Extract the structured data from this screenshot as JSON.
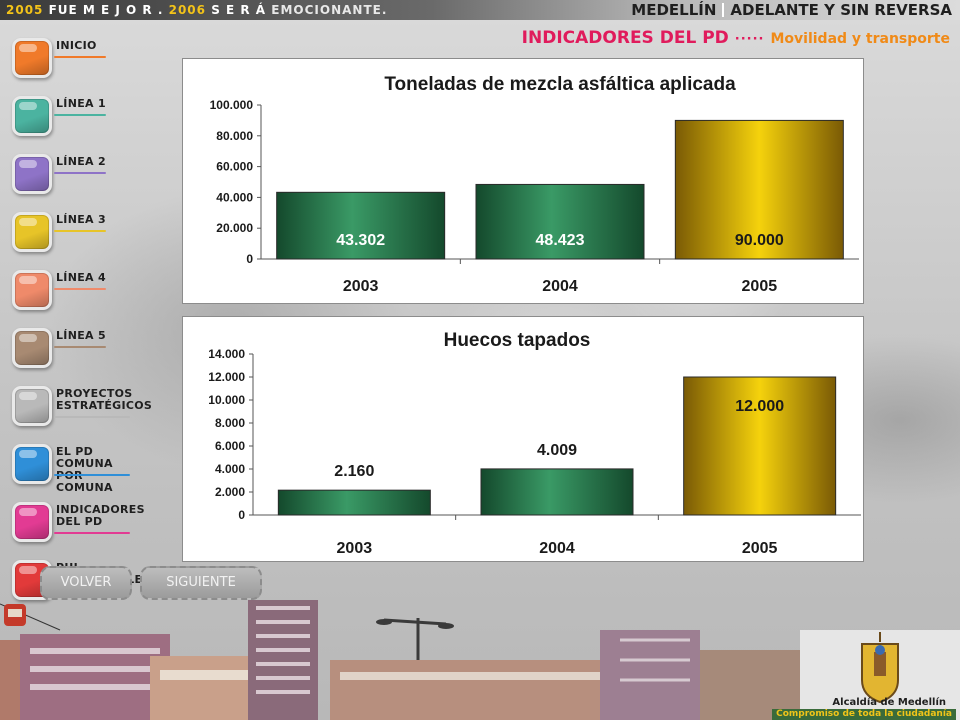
{
  "banner": {
    "slogan": {
      "year1": "2005",
      "w1": "FUE M E J O R .",
      "year2": "2006",
      "w2": "S E R Á",
      "w3": "EMOCIONANTE."
    },
    "brand_city": "MEDELLÍN",
    "brand_tagline": "ADELANTE Y SIN REVERSA"
  },
  "header": {
    "title": "INDICADORES DEL PD",
    "dots": "·····",
    "subtitle": "Movilidad y transporte"
  },
  "sidebar": {
    "items": [
      {
        "label": "INICIO",
        "color": "#f07a2a"
      },
      {
        "label": "LÍNEA 1",
        "color": "#4bb3a0"
      },
      {
        "label": "LÍNEA 2",
        "color": "#8e73c7"
      },
      {
        "label": "LÍNEA 3",
        "color": "#e7c428"
      },
      {
        "label": "LÍNEA 4",
        "color": "#ef8a6a"
      },
      {
        "label": "LÍNEA 5",
        "color": "#a88a72"
      },
      {
        "label": "PROYECTOS ESTRATÉGICOS",
        "color": "#b9b9b9"
      },
      {
        "label": "EL PD COMUNA POR COMUNA",
        "color": "#2f8fd8"
      },
      {
        "label": "INDICADORES DEL PD",
        "color": "#e23b93"
      },
      {
        "label": "PUI METROCABLE",
        "color": "#e23a3a"
      }
    ],
    "back_label": "VOLVER",
    "next_label": "SIGUIENTE"
  },
  "footer": {
    "logo_name": "Alcaldía de Medellín",
    "logo_tagline": "Compromiso de toda la ciudadanía"
  },
  "colors": {
    "green_bar": "#2b7a4f",
    "gold_bar": "#e7c20e",
    "accent_pink": "#e01b5c",
    "accent_orange": "#f08a17"
  },
  "chart_data": [
    {
      "type": "bar",
      "title": "Toneladas de mezcla asfáltica aplicada",
      "categories": [
        "2003",
        "2004",
        "2005"
      ],
      "values": [
        43302,
        48423,
        90000
      ],
      "value_labels": [
        "43.302",
        "48.423",
        "90.000"
      ],
      "bar_colors": [
        "green",
        "green",
        "gold"
      ],
      "yticks": [
        "0",
        "20.000",
        "40.000",
        "60.000",
        "80.000",
        "100.000"
      ],
      "ylim": [
        0,
        100000
      ],
      "xlabel": "",
      "ylabel": "",
      "grid": false,
      "legend": "none"
    },
    {
      "type": "bar",
      "title": "Huecos tapados",
      "categories": [
        "2003",
        "2004",
        "2005"
      ],
      "values": [
        2160,
        4009,
        12000
      ],
      "value_labels": [
        "2.160",
        "4.009",
        "12.000"
      ],
      "bar_colors": [
        "green",
        "green",
        "gold"
      ],
      "yticks": [
        "0",
        "2.000",
        "4.000",
        "6.000",
        "8.000",
        "10.000",
        "12.000",
        "14.000"
      ],
      "ylim": [
        0,
        14000
      ],
      "xlabel": "",
      "ylabel": "",
      "grid": false,
      "legend": "none"
    }
  ]
}
